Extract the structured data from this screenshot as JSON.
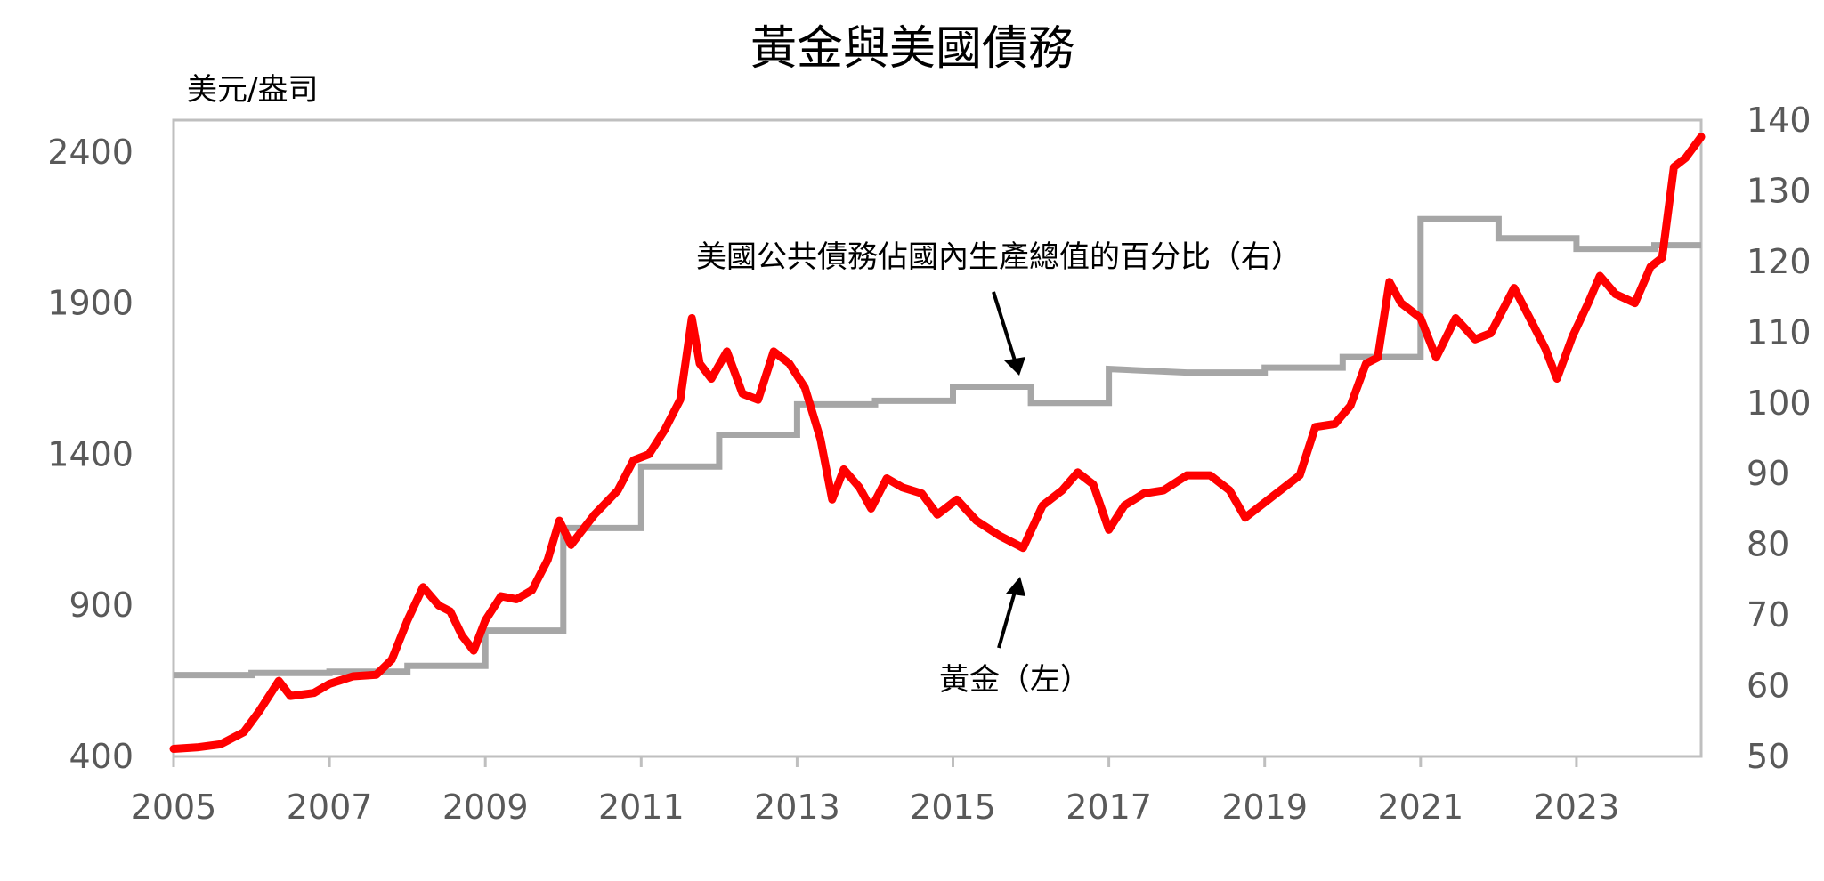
{
  "chart_data": {
    "type": "line",
    "title": "黃金與美國債務",
    "ylabel_left": "美元/盎司",
    "x_ticks": [
      "2005",
      "2007",
      "2009",
      "2011",
      "2013",
      "2015",
      "2017",
      "2019",
      "2021",
      "2023"
    ],
    "xlim": [
      2005,
      2024.6
    ],
    "y_left": {
      "ticks": [
        "400",
        "900",
        "1400",
        "1900",
        "2400"
      ],
      "lim": [
        400,
        2400
      ]
    },
    "y_right": {
      "ticks": [
        "50",
        "60",
        "70",
        "80",
        "90",
        "100",
        "110",
        "120",
        "130",
        "140"
      ],
      "lim": [
        50,
        140
      ]
    },
    "grid": false,
    "colors": {
      "gold": "#ff0000",
      "debt": "#a6a6a6",
      "frame": "#bfbfbf"
    },
    "series": [
      {
        "name": "黃金（左）",
        "axis": "left",
        "points": [
          [
            2005.0,
            425
          ],
          [
            2005.3,
            430
          ],
          [
            2005.6,
            440
          ],
          [
            2005.9,
            480
          ],
          [
            2006.1,
            550
          ],
          [
            2006.35,
            650
          ],
          [
            2006.5,
            600
          ],
          [
            2006.8,
            610
          ],
          [
            2007.0,
            640
          ],
          [
            2007.3,
            665
          ],
          [
            2007.6,
            670
          ],
          [
            2007.8,
            720
          ],
          [
            2008.0,
            850
          ],
          [
            2008.2,
            960
          ],
          [
            2008.4,
            900
          ],
          [
            2008.55,
            880
          ],
          [
            2008.7,
            800
          ],
          [
            2008.85,
            750
          ],
          [
            2009.0,
            850
          ],
          [
            2009.2,
            930
          ],
          [
            2009.4,
            920
          ],
          [
            2009.6,
            950
          ],
          [
            2009.8,
            1050
          ],
          [
            2009.95,
            1180
          ],
          [
            2010.1,
            1100
          ],
          [
            2010.4,
            1200
          ],
          [
            2010.7,
            1280
          ],
          [
            2010.9,
            1380
          ],
          [
            2011.1,
            1400
          ],
          [
            2011.3,
            1480
          ],
          [
            2011.5,
            1580
          ],
          [
            2011.65,
            1850
          ],
          [
            2011.75,
            1700
          ],
          [
            2011.9,
            1650
          ],
          [
            2012.1,
            1740
          ],
          [
            2012.3,
            1600
          ],
          [
            2012.5,
            1580
          ],
          [
            2012.7,
            1740
          ],
          [
            2012.9,
            1700
          ],
          [
            2013.1,
            1620
          ],
          [
            2013.3,
            1450
          ],
          [
            2013.45,
            1250
          ],
          [
            2013.6,
            1350
          ],
          [
            2013.8,
            1290
          ],
          [
            2013.95,
            1220
          ],
          [
            2014.15,
            1320
          ],
          [
            2014.35,
            1290
          ],
          [
            2014.6,
            1270
          ],
          [
            2014.8,
            1200
          ],
          [
            2015.05,
            1250
          ],
          [
            2015.3,
            1180
          ],
          [
            2015.6,
            1130
          ],
          [
            2015.9,
            1090
          ],
          [
            2016.15,
            1230
          ],
          [
            2016.4,
            1280
          ],
          [
            2016.6,
            1340
          ],
          [
            2016.8,
            1300
          ],
          [
            2017.0,
            1150
          ],
          [
            2017.2,
            1230
          ],
          [
            2017.45,
            1270
          ],
          [
            2017.7,
            1280
          ],
          [
            2018.0,
            1330
          ],
          [
            2018.3,
            1330
          ],
          [
            2018.55,
            1280
          ],
          [
            2018.75,
            1190
          ],
          [
            2019.0,
            1240
          ],
          [
            2019.25,
            1290
          ],
          [
            2019.45,
            1330
          ],
          [
            2019.65,
            1490
          ],
          [
            2019.9,
            1500
          ],
          [
            2020.1,
            1560
          ],
          [
            2020.3,
            1700
          ],
          [
            2020.45,
            1720
          ],
          [
            2020.6,
            1970
          ],
          [
            2020.75,
            1900
          ],
          [
            2021.0,
            1850
          ],
          [
            2021.2,
            1720
          ],
          [
            2021.45,
            1850
          ],
          [
            2021.7,
            1780
          ],
          [
            2021.9,
            1800
          ],
          [
            2022.2,
            1950
          ],
          [
            2022.4,
            1850
          ],
          [
            2022.6,
            1750
          ],
          [
            2022.75,
            1650
          ],
          [
            2022.95,
            1790
          ],
          [
            2023.15,
            1900
          ],
          [
            2023.3,
            1990
          ],
          [
            2023.5,
            1930
          ],
          [
            2023.75,
            1900
          ],
          [
            2023.95,
            2020
          ],
          [
            2024.1,
            2050
          ],
          [
            2024.25,
            2350
          ],
          [
            2024.4,
            2380
          ],
          [
            2024.6,
            2450
          ]
        ]
      },
      {
        "name": "美國公共債務佔國內生產總值的百分比（右）",
        "axis": "right",
        "points": [
          [
            2005.0,
            61.5
          ],
          [
            2006.0,
            61.5
          ],
          [
            2006.0,
            61.8
          ],
          [
            2007.0,
            61.8
          ],
          [
            2007.0,
            62.0
          ],
          [
            2008.0,
            62.0
          ],
          [
            2008.0,
            62.8
          ],
          [
            2009.0,
            62.8
          ],
          [
            2009.0,
            67.8
          ],
          [
            2010.0,
            67.8
          ],
          [
            2010.0,
            82.3
          ],
          [
            2011.0,
            82.3
          ],
          [
            2011.0,
            91.0
          ],
          [
            2012.0,
            91.0
          ],
          [
            2012.0,
            95.5
          ],
          [
            2013.0,
            95.5
          ],
          [
            2013.0,
            99.8
          ],
          [
            2014.0,
            99.8
          ],
          [
            2014.0,
            100.3
          ],
          [
            2015.0,
            100.3
          ],
          [
            2015.0,
            102.3
          ],
          [
            2016.0,
            102.3
          ],
          [
            2016.0,
            100.0
          ],
          [
            2017.0,
            100.0
          ],
          [
            2017.0,
            104.8
          ],
          [
            2018.0,
            104.3
          ],
          [
            2019.0,
            104.3
          ],
          [
            2019.0,
            105.0
          ],
          [
            2020.0,
            105.0
          ],
          [
            2020.0,
            106.5
          ],
          [
            2021.0,
            106.5
          ],
          [
            2021.0,
            126.0
          ],
          [
            2022.0,
            126.0
          ],
          [
            2022.0,
            123.3
          ],
          [
            2023.0,
            123.3
          ],
          [
            2023.0,
            121.8
          ],
          [
            2024.0,
            121.8
          ],
          [
            2024.0,
            122.3
          ],
          [
            2024.6,
            122.3
          ]
        ]
      }
    ],
    "annotations": [
      {
        "text": "美國公共債務佔國內生產總值的百分比（右）"
      },
      {
        "text": "黃金（左）"
      }
    ]
  }
}
